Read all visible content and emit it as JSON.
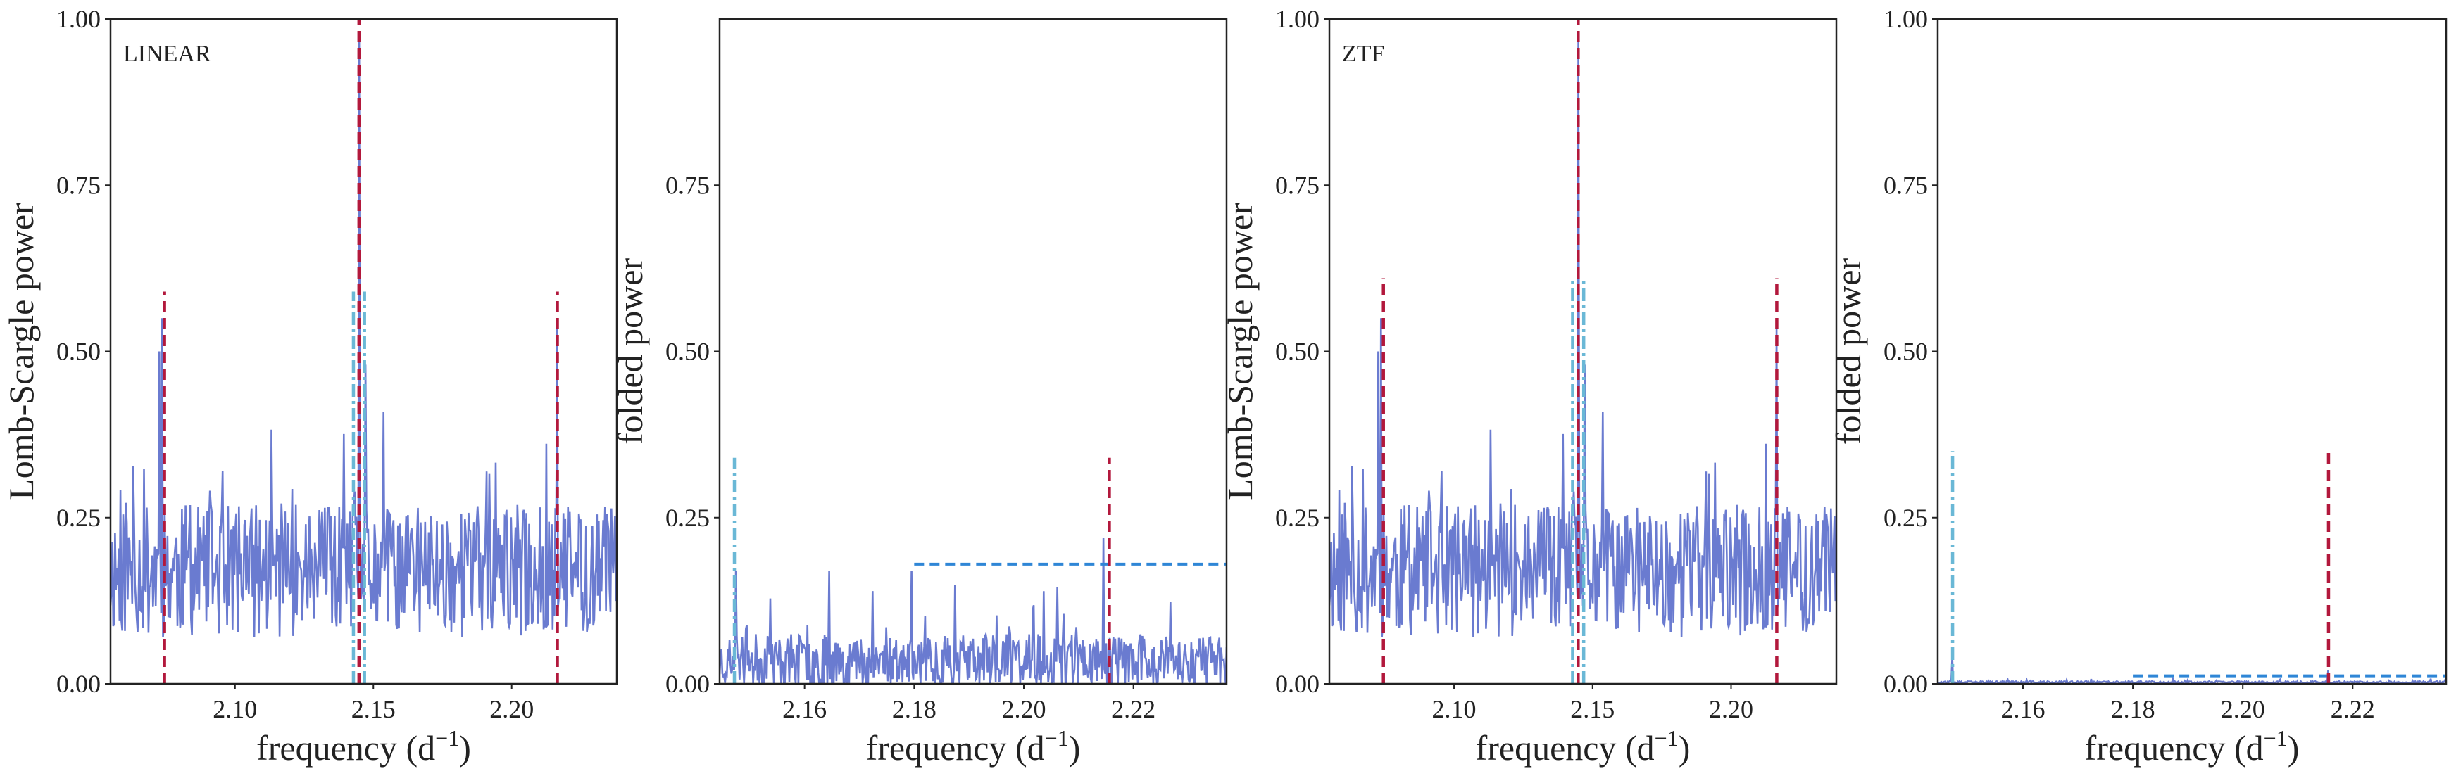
{
  "colors": {
    "spectrum": "#6a7bd0",
    "primary_marker": "#b2183c",
    "secondary_marker": "#6ab8d6",
    "threshold": "#2f86d6",
    "frame": "#222222"
  },
  "chart_data": [
    {
      "type": "line",
      "panel_tag": "LINEAR",
      "xlabel_base": "frequency (d",
      "xlabel_sup": "−1",
      "xlabel_end": ")",
      "ylabel": "Lomb-Scargle power",
      "xlim": [
        2.055,
        2.238
      ],
      "ylim": [
        0,
        1.0
      ],
      "xticks": [
        2.1,
        2.15,
        2.2
      ],
      "xtick_labels": [
        "2.10",
        "2.15",
        "2.20"
      ],
      "yticks": [
        0,
        0.25,
        0.5,
        0.75,
        1.0
      ],
      "ytick_labels": [
        "0.00",
        "0.25",
        "0.50",
        "0.75",
        "1.00"
      ],
      "series": [
        {
          "noise_mean": 0.17,
          "noise_spread": 0.1,
          "seed": 11
        }
      ],
      "peaks": [
        {
          "x": 2.0735,
          "y": 0.55
        },
        {
          "x": 2.0725,
          "y": 0.5
        },
        {
          "x": 2.1448,
          "y": 0.98
        },
        {
          "x": 2.147,
          "y": 0.48
        },
        {
          "x": 2.2165,
          "y": 0.54
        }
      ],
      "vlines": [
        {
          "x": 2.0745,
          "y_top": 0.59,
          "kind": "primary"
        },
        {
          "x": 2.1448,
          "y_top": 1.0,
          "kind": "primary"
        },
        {
          "x": 2.2165,
          "y_top": 0.59,
          "kind": "primary"
        },
        {
          "x": 2.1428,
          "y_top": 0.59,
          "kind": "secondary"
        },
        {
          "x": 2.1468,
          "y_top": 0.59,
          "kind": "secondary"
        }
      ]
    },
    {
      "type": "line",
      "panel_tag": "",
      "xlabel_base": "frequency (d",
      "xlabel_sup": "−1",
      "xlabel_end": ")",
      "ylabel": "folded power",
      "xlim": [
        2.1445,
        2.237
      ],
      "ylim": [
        0,
        1.0
      ],
      "xticks": [
        2.16,
        2.18,
        2.2,
        2.22
      ],
      "xtick_labels": [
        "2.16",
        "2.18",
        "2.20",
        "2.22"
      ],
      "yticks": [
        0,
        0.25,
        0.5,
        0.75
      ],
      "ytick_labels": [
        "0.00",
        "0.25",
        "0.50",
        "0.75"
      ],
      "series": [
        {
          "noise_mean": 0.035,
          "noise_spread": 0.04,
          "seed": 23
        }
      ],
      "peaks": [
        {
          "x": 2.1475,
          "y": 0.17
        },
        {
          "x": 2.1645,
          "y": 0.17
        },
        {
          "x": 2.1795,
          "y": 0.17
        },
        {
          "x": 2.2145,
          "y": 0.22
        }
      ],
      "vlines": [
        {
          "x": 2.2156,
          "y_top": 0.34,
          "kind": "primary"
        },
        {
          "x": 2.1472,
          "y_top": 0.34,
          "kind": "secondary"
        }
      ],
      "hlines": [
        {
          "y": 0.18,
          "x_start": 2.18,
          "x_end": 2.237
        }
      ]
    },
    {
      "type": "line",
      "panel_tag": "ZTF",
      "xlabel_base": "frequency (d",
      "xlabel_sup": "−1",
      "xlabel_end": ")",
      "ylabel": "Lomb-Scargle power",
      "xlim": [
        2.055,
        2.238
      ],
      "ylim": [
        0,
        1.0
      ],
      "xticks": [
        2.1,
        2.15,
        2.2
      ],
      "xtick_labels": [
        "2.10",
        "2.15",
        "2.20"
      ],
      "yticks": [
        0,
        0.25,
        0.5,
        0.75,
        1.0
      ],
      "ytick_labels": [
        "0.00",
        "0.25",
        "0.50",
        "0.75",
        "1.00"
      ],
      "series": [
        {
          "noise_mean": 0.17,
          "noise_spread": 0.1,
          "seed": 11
        }
      ],
      "peaks": [
        {
          "x": 2.0735,
          "y": 0.55
        },
        {
          "x": 2.0725,
          "y": 0.5
        },
        {
          "x": 2.1448,
          "y": 0.98
        },
        {
          "x": 2.147,
          "y": 0.48
        },
        {
          "x": 2.2165,
          "y": 0.54
        }
      ],
      "vlines": [
        {
          "x": 2.0745,
          "y_top": 0.61,
          "kind": "primary"
        },
        {
          "x": 2.1448,
          "y_top": 1.0,
          "kind": "primary"
        },
        {
          "x": 2.2165,
          "y_top": 0.61,
          "kind": "primary"
        },
        {
          "x": 2.1428,
          "y_top": 0.61,
          "kind": "secondary"
        },
        {
          "x": 2.1468,
          "y_top": 0.61,
          "kind": "secondary"
        }
      ]
    },
    {
      "type": "line",
      "panel_tag": "",
      "xlabel_base": "frequency (d",
      "xlabel_sup": "−1",
      "xlabel_end": ")",
      "ylabel": "folded power",
      "xlim": [
        2.1445,
        2.237
      ],
      "ylim": [
        0,
        1.0
      ],
      "xticks": [
        2.16,
        2.18,
        2.2,
        2.22
      ],
      "xtick_labels": [
        "2.16",
        "2.18",
        "2.20",
        "2.22"
      ],
      "yticks": [
        0,
        0.25,
        0.5,
        0.75,
        1.0
      ],
      "ytick_labels": [
        "0.00",
        "0.25",
        "0.50",
        "0.75",
        "1.00"
      ],
      "series": [
        {
          "noise_mean": 0.002,
          "noise_spread": 0.002,
          "seed": 37
        }
      ],
      "peaks": [
        {
          "x": 2.1472,
          "y": 0.04
        },
        {
          "x": 2.2156,
          "y": 0.02
        }
      ],
      "vlines": [
        {
          "x": 2.2156,
          "y_top": 0.35,
          "kind": "primary"
        },
        {
          "x": 2.1472,
          "y_top": 0.35,
          "kind": "secondary"
        }
      ],
      "hlines": [
        {
          "y": 0.012,
          "x_start": 2.18,
          "x_end": 2.237
        }
      ]
    }
  ]
}
